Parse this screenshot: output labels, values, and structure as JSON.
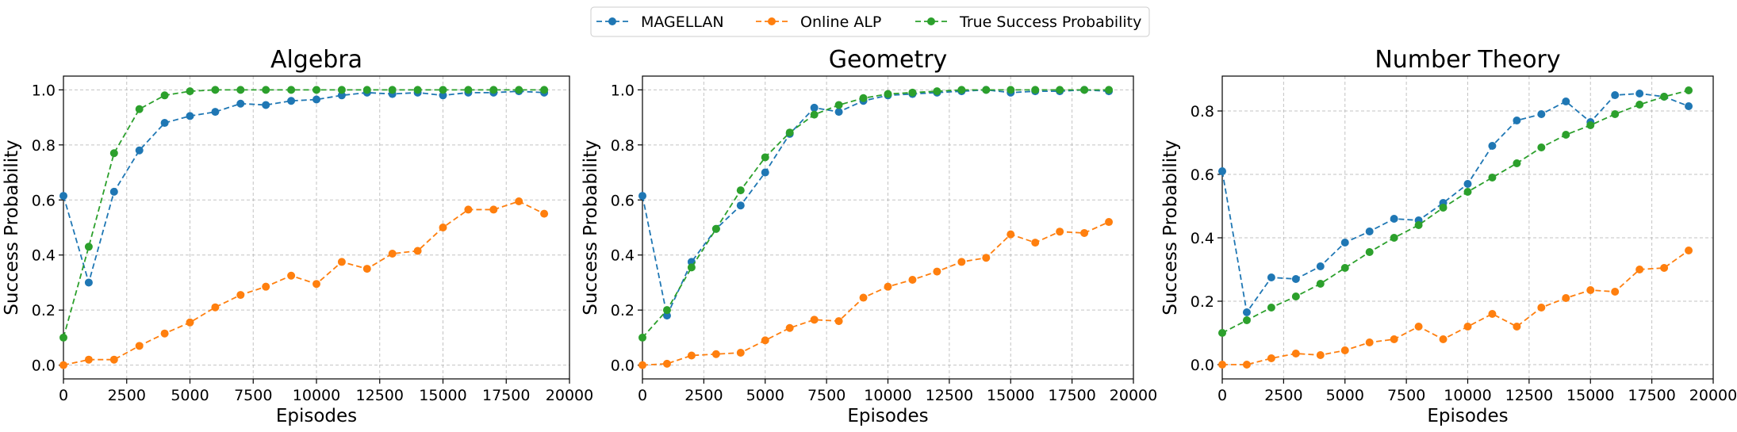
{
  "legend": {
    "entries": [
      {
        "label": "MAGELLAN",
        "color": "#1f77b4"
      },
      {
        "label": "Online ALP",
        "color": "#ff7f0e"
      },
      {
        "label": "True Success Probability",
        "color": "#2ca02c"
      }
    ],
    "placement": "top-center"
  },
  "chart_data": [
    {
      "type": "line",
      "title": "Algebra",
      "xlabel": "Episodes",
      "ylabel": "Success Probability",
      "xlim": [
        0,
        20000
      ],
      "ylim": [
        -0.05,
        1.05
      ],
      "xticks": [
        0,
        2500,
        5000,
        7500,
        10000,
        12500,
        15000,
        17500,
        20000
      ],
      "yticks": [
        0.0,
        0.2,
        0.4,
        0.6,
        0.8,
        1.0
      ],
      "grid": true,
      "x": [
        0,
        1000,
        2000,
        3000,
        4000,
        5000,
        6000,
        7000,
        8000,
        9000,
        10000,
        11000,
        12000,
        13000,
        14000,
        15000,
        16000,
        17000,
        18000,
        19000
      ],
      "series": [
        {
          "name": "MAGELLAN",
          "color": "#1f77b4",
          "values": [
            0.615,
            0.3,
            0.63,
            0.78,
            0.88,
            0.905,
            0.92,
            0.95,
            0.945,
            0.96,
            0.965,
            0.98,
            0.99,
            0.985,
            0.99,
            0.98,
            0.99,
            0.99,
            0.995,
            0.99
          ]
        },
        {
          "name": "Online ALP",
          "color": "#ff7f0e",
          "values": [
            0.0,
            0.02,
            0.02,
            0.07,
            0.115,
            0.155,
            0.21,
            0.255,
            0.285,
            0.325,
            0.295,
            0.375,
            0.35,
            0.405,
            0.415,
            0.5,
            0.565,
            0.565,
            0.595,
            0.55
          ]
        },
        {
          "name": "True Success Probability",
          "color": "#2ca02c",
          "values": [
            0.1,
            0.43,
            0.77,
            0.93,
            0.98,
            0.995,
            1.0,
            1.0,
            1.0,
            1.0,
            1.0,
            1.0,
            1.0,
            1.0,
            1.0,
            1.0,
            1.0,
            1.0,
            1.0,
            1.0
          ]
        }
      ]
    },
    {
      "type": "line",
      "title": "Geometry",
      "xlabel": "Episodes",
      "ylabel": "Success Probability",
      "xlim": [
        0,
        20000
      ],
      "ylim": [
        -0.05,
        1.05
      ],
      "xticks": [
        0,
        2500,
        5000,
        7500,
        10000,
        12500,
        15000,
        17500,
        20000
      ],
      "yticks": [
        0.0,
        0.2,
        0.4,
        0.6,
        0.8,
        1.0
      ],
      "grid": true,
      "x": [
        0,
        1000,
        2000,
        3000,
        4000,
        5000,
        6000,
        7000,
        8000,
        9000,
        10000,
        11000,
        12000,
        13000,
        14000,
        15000,
        16000,
        17000,
        18000,
        19000
      ],
      "series": [
        {
          "name": "MAGELLAN",
          "color": "#1f77b4",
          "values": [
            0.615,
            0.18,
            0.375,
            0.495,
            0.58,
            0.7,
            0.84,
            0.935,
            0.92,
            0.96,
            0.98,
            0.985,
            0.99,
            0.995,
            1.0,
            0.99,
            0.995,
            0.995,
            1.0,
            0.995
          ]
        },
        {
          "name": "Online ALP",
          "color": "#ff7f0e",
          "values": [
            0.0,
            0.005,
            0.035,
            0.04,
            0.045,
            0.09,
            0.135,
            0.165,
            0.16,
            0.245,
            0.285,
            0.31,
            0.34,
            0.375,
            0.39,
            0.475,
            0.445,
            0.485,
            0.48,
            0.52
          ]
        },
        {
          "name": "True Success Probability",
          "color": "#2ca02c",
          "values": [
            0.1,
            0.2,
            0.355,
            0.495,
            0.635,
            0.755,
            0.845,
            0.91,
            0.945,
            0.97,
            0.985,
            0.99,
            0.995,
            1.0,
            1.0,
            1.0,
            1.0,
            1.0,
            1.0,
            1.0
          ]
        }
      ]
    },
    {
      "type": "line",
      "title": "Number Theory",
      "xlabel": "Episodes",
      "ylabel": "Success Probability",
      "xlim": [
        0,
        20000
      ],
      "ylim": [
        -0.045,
        0.91
      ],
      "xticks": [
        0,
        2500,
        5000,
        7500,
        10000,
        12500,
        15000,
        17500,
        20000
      ],
      "yticks": [
        0.0,
        0.2,
        0.4,
        0.6,
        0.8
      ],
      "grid": true,
      "x": [
        0,
        1000,
        2000,
        3000,
        4000,
        5000,
        6000,
        7000,
        8000,
        9000,
        10000,
        11000,
        12000,
        13000,
        14000,
        15000,
        16000,
        17000,
        18000,
        19000
      ],
      "series": [
        {
          "name": "MAGELLAN",
          "color": "#1f77b4",
          "values": [
            0.61,
            0.165,
            0.275,
            0.27,
            0.31,
            0.385,
            0.42,
            0.46,
            0.455,
            0.51,
            0.57,
            0.69,
            0.77,
            0.79,
            0.83,
            0.765,
            0.85,
            0.855,
            0.845,
            0.815
          ]
        },
        {
          "name": "Online ALP",
          "color": "#ff7f0e",
          "values": [
            0.0,
            0.0,
            0.02,
            0.035,
            0.03,
            0.045,
            0.07,
            0.08,
            0.12,
            0.08,
            0.12,
            0.16,
            0.12,
            0.18,
            0.21,
            0.235,
            0.23,
            0.3,
            0.305,
            0.36
          ]
        },
        {
          "name": "True Success Probability",
          "color": "#2ca02c",
          "values": [
            0.1,
            0.14,
            0.18,
            0.215,
            0.255,
            0.305,
            0.355,
            0.4,
            0.44,
            0.495,
            0.545,
            0.59,
            0.635,
            0.685,
            0.725,
            0.755,
            0.79,
            0.82,
            0.845,
            0.865
          ]
        }
      ]
    }
  ]
}
